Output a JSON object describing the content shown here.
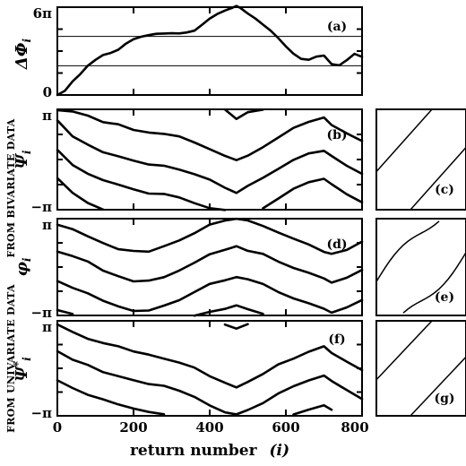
{
  "chart_data": [
    {
      "id": "a",
      "type": "line",
      "panel_label": "(a)",
      "ylabel": "ΔΦ",
      "ylabel_sub": "i",
      "ytick_labels": [
        "6π",
        "0"
      ],
      "ylim": [
        0,
        6
      ],
      "y_unit": "π",
      "hlines": [
        2,
        4
      ],
      "x": [
        0,
        20,
        40,
        60,
        80,
        100,
        120,
        140,
        160,
        180,
        200,
        220,
        240,
        260,
        280,
        300,
        320,
        340,
        360,
        380,
        400,
        420,
        440,
        460,
        470,
        480,
        500,
        520,
        540,
        560,
        580,
        600,
        620,
        640,
        660,
        680,
        700,
        720,
        740,
        760,
        780,
        800
      ],
      "y": [
        0,
        0.3,
        0.9,
        1.4,
        2.0,
        2.4,
        2.7,
        2.9,
        3.1,
        3.5,
        3.8,
        4.0,
        4.1,
        4.15,
        4.2,
        4.2,
        4.22,
        4.25,
        4.4,
        4.8,
        5.2,
        5.5,
        5.8,
        6.0,
        6.05,
        5.95,
        5.6,
        5.2,
        4.8,
        4.4,
        3.9,
        3.3,
        2.8,
        2.5,
        2.4,
        2.6,
        2.7,
        2.1,
        2.0,
        2.4,
        2.8,
        2.6
      ]
    },
    {
      "id": "b",
      "type": "line",
      "panel_label": "(b)",
      "ylabel": "Ψ",
      "ylabel_sub": "i",
      "ytick_labels": [
        "π",
        "−π"
      ],
      "ylim": [
        -3.1416,
        3.1416
      ],
      "x": [
        0,
        40,
        80,
        120,
        160,
        200,
        240,
        280,
        320,
        360,
        400,
        440,
        470,
        500,
        540,
        580,
        620,
        660,
        700,
        720,
        760,
        800
      ],
      "series": [
        {
          "values": [
            2.4,
            1.5,
            0.9,
            0.5,
            0.2,
            -0.1,
            -0.3,
            -0.4,
            -0.6,
            -0.9,
            -1.3,
            -1.8,
            -2.1,
            -1.7,
            -1.2,
            -0.6,
            0.0,
            0.4,
            0.6,
            0.2,
            -0.4,
            -0.9
          ]
        },
        {
          "values": [
            0.6,
            -0.3,
            -0.9,
            -1.3,
            -1.6,
            -1.9,
            -2.1,
            -2.2,
            -2.4,
            -2.7,
            -3.0,
            -3.1,
            null,
            null,
            -3.0,
            -2.4,
            -1.8,
            -1.4,
            -1.2,
            -1.6,
            -2.2,
            -2.7
          ]
        },
        {
          "values": [
            -1.2,
            -2.1,
            -2.7,
            -3.1,
            null,
            null,
            null,
            null,
            null,
            null,
            null,
            null,
            null,
            null,
            null,
            null,
            null,
            null,
            null,
            null,
            null,
            null
          ]
        },
        {
          "values": [
            null,
            null,
            null,
            null,
            null,
            null,
            null,
            null,
            null,
            null,
            null,
            3.1,
            2.6,
            2.9,
            3.1,
            null,
            null,
            null,
            null,
            null,
            null,
            null
          ]
        },
        {
          "values": [
            3.1,
            3.0,
            2.7,
            2.4,
            2.2,
            1.9,
            1.7,
            1.6,
            1.4,
            1.1,
            0.7,
            0.2,
            -0.1,
            0.2,
            0.8,
            1.4,
            2.0,
            2.4,
            2.6,
            2.2,
            1.6,
            1.1
          ]
        }
      ]
    },
    {
      "id": "d",
      "type": "line",
      "panel_label": "(d)",
      "ylabel": "φ",
      "ylabel_sub": "i",
      "ytick_labels": [
        "π",
        "−π"
      ],
      "ylim": [
        -3.1416,
        3.1416
      ],
      "x": [
        0,
        40,
        80,
        120,
        160,
        200,
        240,
        280,
        320,
        360,
        400,
        440,
        470,
        500,
        540,
        580,
        620,
        660,
        700,
        720,
        760,
        800
      ],
      "series": [
        {
          "values": [
            2.7,
            2.4,
            2.0,
            1.6,
            1.2,
            1.0,
            1.0,
            1.3,
            1.7,
            2.2,
            2.7,
            3.0,
            3.1,
            3.0,
            2.7,
            2.2,
            1.8,
            1.4,
            1.0,
            0.8,
            1.1,
            1.6
          ]
        },
        {
          "values": [
            1.0,
            0.7,
            0.3,
            -0.2,
            -0.6,
            -0.9,
            -0.9,
            -0.6,
            -0.2,
            0.3,
            0.8,
            1.1,
            1.3,
            1.1,
            0.8,
            0.3,
            -0.1,
            -0.4,
            -0.8,
            -1.0,
            -0.7,
            -0.2
          ]
        },
        {
          "values": [
            -0.9,
            -1.3,
            -1.7,
            -2.2,
            -2.6,
            -2.8,
            -2.8,
            -2.5,
            -2.1,
            -1.6,
            -1.1,
            -0.8,
            -0.6,
            -0.8,
            -1.1,
            -1.6,
            -2.0,
            -2.3,
            -2.7,
            -2.9,
            -2.6,
            -2.1
          ]
        },
        {
          "values": [
            -2.8,
            -3.1,
            null,
            null,
            null,
            null,
            null,
            null,
            null,
            -3.1,
            -2.9,
            -2.7,
            -2.5,
            -2.7,
            -3.0,
            null,
            null,
            null,
            null,
            null,
            null,
            null
          ]
        }
      ]
    },
    {
      "id": "f",
      "type": "line",
      "panel_label": "(f)",
      "ylabel": "Ψ",
      "ylabel_sub": "i",
      "ylabel_sup": "*",
      "ytick_labels": [
        "π",
        "−π"
      ],
      "ylim": [
        -3.1416,
        3.1416
      ],
      "x": [
        0,
        40,
        80,
        120,
        160,
        200,
        240,
        280,
        320,
        360,
        400,
        440,
        470,
        500,
        540,
        580,
        620,
        660,
        700,
        720,
        760,
        800
      ],
      "series": [
        {
          "values": [
            2.9,
            2.4,
            2.0,
            1.7,
            1.4,
            1.1,
            0.9,
            0.7,
            0.4,
            0.0,
            -0.5,
            -1.0,
            -1.3,
            -0.9,
            -0.4,
            0.2,
            0.7,
            1.1,
            1.4,
            1.0,
            0.4,
            -0.1
          ]
        },
        {
          "values": [
            1.1,
            0.6,
            0.2,
            -0.2,
            -0.5,
            -0.8,
            -1.0,
            -1.2,
            -1.5,
            -1.9,
            -2.4,
            -2.9,
            -3.1,
            -2.8,
            -2.3,
            -1.7,
            -1.2,
            -0.8,
            -0.5,
            -0.9,
            -1.5,
            -2.0
          ]
        },
        {
          "values": [
            -0.8,
            -1.3,
            -1.7,
            -2.1,
            -2.4,
            -2.7,
            -2.9,
            -3.1,
            null,
            null,
            null,
            null,
            null,
            null,
            null,
            null,
            -3.1,
            -2.7,
            -2.4,
            -2.8,
            null,
            null
          ]
        },
        {
          "values": [
            null,
            null,
            null,
            null,
            null,
            null,
            null,
            null,
            null,
            null,
            null,
            2.9,
            2.6,
            2.9,
            null,
            null,
            null,
            null,
            null,
            null,
            null,
            null
          ]
        }
      ]
    },
    {
      "id": "c",
      "type": "line",
      "panel_label": "(c)",
      "mapping": "linear",
      "lines": [
        0,
        1
      ]
    },
    {
      "id": "e",
      "type": "line",
      "panel_label": "(e)",
      "mapping": "curved",
      "lines": [
        0,
        1
      ]
    },
    {
      "id": "g",
      "type": "line",
      "panel_label": "(g)",
      "mapping": "linear",
      "lines": [
        0,
        1
      ]
    }
  ],
  "axes": {
    "xlabel": "return number",
    "xlabel_sym": "(i)",
    "xtick_labels": [
      "0",
      "200",
      "400",
      "600",
      "800"
    ],
    "xlim": [
      0,
      800
    ]
  },
  "side_labels": {
    "bivariate": "FROM BIVARIATE DATA",
    "univariate": "FROM UNIVARIATE DATA"
  }
}
